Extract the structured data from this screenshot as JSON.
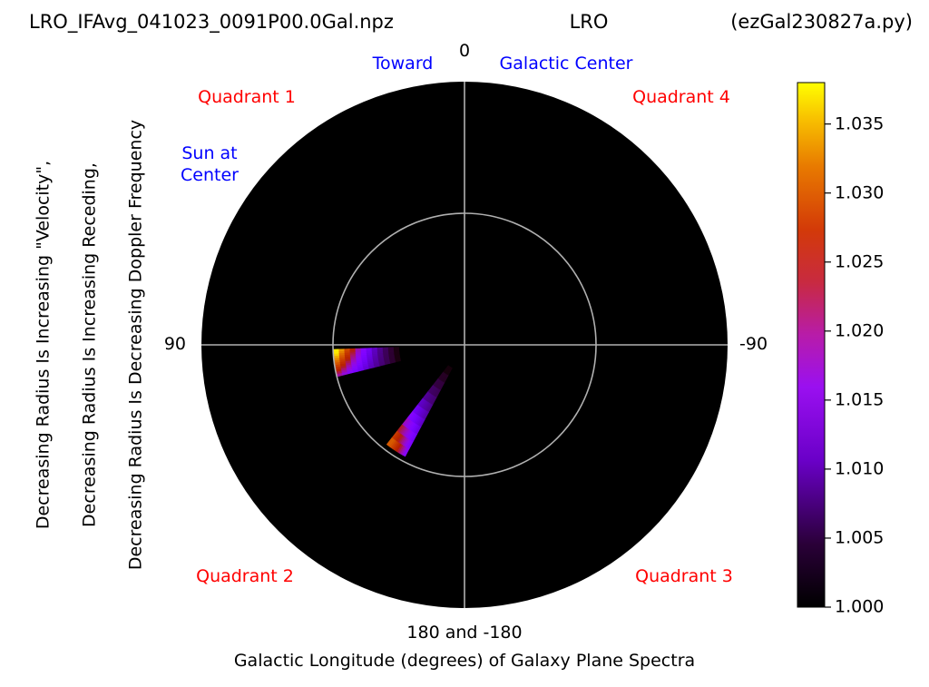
{
  "header": {
    "left": "LRO_IFAvg_041023_0091P00.0Gal.npz",
    "center": "LRO",
    "right": "(ezGal230827a.py)"
  },
  "annotations": {
    "toward": "Toward",
    "galactic_center": "Galactic Center",
    "sun_line1": "Sun at",
    "sun_line2": "Center",
    "quadrant1": "Quadrant 1",
    "quadrant2": "Quadrant 2",
    "quadrant3": "Quadrant 3",
    "quadrant4": "Quadrant 4"
  },
  "axis_labels": {
    "top": "0",
    "left": "90",
    "right": "-90",
    "bottom": "180 and -180",
    "xlabel": "Galactic Longitude (degrees) of Galaxy Plane Spectra",
    "ylabel_1": "Decreasing Radius Is Increasing \"Velocity\",",
    "ylabel_2": "Decreasing Radius Is Increasing Receding,",
    "ylabel_3": "Decreasing Radius Is Decreasing Doppler Frequency"
  },
  "colorbar": {
    "min": 1.0,
    "max": 1.038,
    "ticks": [
      "1.000",
      "1.005",
      "1.010",
      "1.015",
      "1.020",
      "1.025",
      "1.030",
      "1.035"
    ],
    "tick_values": [
      1.0,
      1.005,
      1.01,
      1.015,
      1.02,
      1.025,
      1.03,
      1.035
    ],
    "colormap": "gnuplot"
  },
  "chart_data": {
    "type": "heatmap",
    "projection": "polar",
    "theta_zero": "top",
    "theta_direction": "counterclockwise",
    "background_color": "#000000",
    "gridline_color": "#b0b0b0",
    "reference_circle_fraction": 0.5,
    "value_range": [
      1.0,
      1.038
    ],
    "features": [
      {
        "longitude_start_deg": 92,
        "longitude_end_deg": 104,
        "radius_inner_fraction": 0.25,
        "radius_outer_fraction": 0.5,
        "peak_value": 1.037
      },
      {
        "longitude_start_deg": 142,
        "longitude_end_deg": 152,
        "radius_inner_fraction": 0.1,
        "radius_outer_fraction": 0.48,
        "peak_value": 1.027
      }
    ]
  }
}
